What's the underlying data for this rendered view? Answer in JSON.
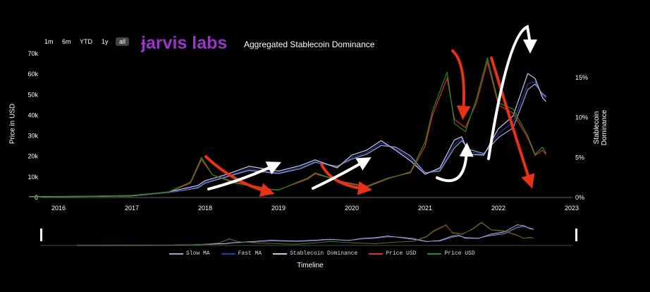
{
  "range_buttons": [
    "1m",
    "6m",
    "YTD",
    "1y",
    "all"
  ],
  "active_range": "all",
  "brand_name": "ɉarvis labs",
  "brand_color": "#9b35c9",
  "chart_title": "Aggregated Stablecoin Dominance",
  "chart_data": {
    "type": "line",
    "title": "Aggregated Stablecoin Dominance",
    "xlabel": "Timeline",
    "ylabel": "Price in USD",
    "y2label": "Stablecoin Dominance",
    "x_ticks": [
      "2016",
      "2017",
      "2018",
      "2019",
      "2020",
      "2021",
      "2022",
      "2023"
    ],
    "y_ticks": [
      "0",
      "10k",
      "20k",
      "30k",
      "40k",
      "50k",
      "60k",
      "70k"
    ],
    "y2_ticks": [
      "0%",
      "5%",
      "10%",
      "15%"
    ],
    "ylim": [
      0,
      70000
    ],
    "y2lim": [
      0,
      18
    ],
    "grid": false,
    "legend_position": "bottom",
    "series": [
      {
        "name": "Slow MA",
        "color": "#9aa9c8",
        "axis": "right",
        "x": [
          2015.6,
          2016.0,
          2016.5,
          2017.0,
          2017.5,
          2017.9,
          2018.0,
          2018.3,
          2018.6,
          2019.0,
          2019.3,
          2019.5,
          2019.8,
          2020.0,
          2020.2,
          2020.4,
          2020.6,
          2020.8,
          2021.0,
          2021.2,
          2021.4,
          2021.5,
          2021.6,
          2021.8,
          2022.0,
          2022.2,
          2022.4,
          2022.5,
          2022.6,
          2022.65
        ],
        "y": [
          0.1,
          0.12,
          0.15,
          0.2,
          0.6,
          1.2,
          1.8,
          2.6,
          3.4,
          3.0,
          3.6,
          4.4,
          3.9,
          4.8,
          5.4,
          6.5,
          6.3,
          5.2,
          3.1,
          3.3,
          6.2,
          7.1,
          6.0,
          5.5,
          7.5,
          8.7,
          13.5,
          14.2,
          13.0,
          12.6
        ]
      },
      {
        "name": "Fast MA",
        "color": "#1f3da8",
        "axis": "right",
        "x": [
          2015.6,
          2016.0,
          2016.5,
          2017.0,
          2017.5,
          2017.9,
          2018.0,
          2018.3,
          2018.6,
          2019.0,
          2019.3,
          2019.5,
          2019.8,
          2020.0,
          2020.2,
          2020.4,
          2020.6,
          2020.8,
          2021.0,
          2021.2,
          2021.4,
          2021.5,
          2021.6,
          2021.8,
          2022.0,
          2022.2,
          2022.4,
          2022.5,
          2022.6,
          2022.65
        ],
        "y": [
          0.1,
          0.12,
          0.15,
          0.2,
          0.6,
          1.3,
          1.9,
          2.7,
          3.6,
          3.1,
          3.8,
          4.5,
          3.8,
          5.0,
          5.6,
          6.8,
          6.1,
          4.9,
          3.0,
          3.5,
          6.6,
          7.4,
          5.7,
          5.4,
          8.0,
          9.4,
          14.2,
          14.5,
          12.8,
          12.4
        ]
      },
      {
        "name": "Stablecoin Dominance",
        "color": "#cfc6ee",
        "axis": "right",
        "x": [
          2015.6,
          2016.0,
          2016.5,
          2017.0,
          2017.5,
          2017.9,
          2018.0,
          2018.3,
          2018.6,
          2019.0,
          2019.3,
          2019.5,
          2019.8,
          2020.0,
          2020.2,
          2020.4,
          2020.6,
          2020.8,
          2021.0,
          2021.2,
          2021.4,
          2021.5,
          2021.6,
          2021.8,
          2022.0,
          2022.2,
          2022.4,
          2022.5,
          2022.6,
          2022.65
        ],
        "y": [
          0.1,
          0.12,
          0.15,
          0.2,
          0.7,
          1.5,
          2.1,
          2.9,
          3.9,
          3.3,
          4.0,
          4.7,
          3.7,
          5.3,
          5.9,
          7.1,
          5.9,
          4.6,
          2.9,
          3.7,
          7.2,
          7.6,
          5.4,
          5.3,
          8.6,
          10.2,
          15.5,
          14.9,
          12.5,
          12.0
        ]
      },
      {
        "name": "Price USD",
        "color": "#e0301e",
        "axis": "left",
        "x": [
          2015.6,
          2016.0,
          2016.5,
          2017.0,
          2017.5,
          2017.8,
          2017.95,
          2018.1,
          2018.4,
          2018.9,
          2019.0,
          2019.4,
          2019.5,
          2019.9,
          2020.2,
          2020.5,
          2020.8,
          2021.0,
          2021.1,
          2021.3,
          2021.4,
          2021.55,
          2021.7,
          2021.85,
          2022.0,
          2022.2,
          2022.4,
          2022.5,
          2022.6,
          2022.65
        ],
        "y": [
          300,
          400,
          650,
          1000,
          2600,
          7000,
          18500,
          11000,
          7500,
          4000,
          3700,
          9000,
          11500,
          7500,
          5500,
          9500,
          12000,
          25000,
          40000,
          58000,
          38000,
          34000,
          46000,
          66000,
          45000,
          41000,
          29000,
          20500,
          23000,
          21000
        ]
      },
      {
        "name": "Price USD",
        "color": "#1f8b24",
        "axis": "left",
        "x": [
          2015.6,
          2016.0,
          2016.5,
          2017.0,
          2017.5,
          2017.8,
          2017.95,
          2018.1,
          2018.4,
          2018.9,
          2019.0,
          2019.4,
          2019.5,
          2019.9,
          2020.2,
          2020.5,
          2020.8,
          2021.0,
          2021.1,
          2021.3,
          2021.4,
          2021.55,
          2021.7,
          2021.85,
          2022.0,
          2022.2,
          2022.4,
          2022.5,
          2022.6,
          2022.65
        ],
        "y": [
          300,
          420,
          670,
          1000,
          2700,
          7500,
          19500,
          11000,
          7000,
          3800,
          3600,
          9500,
          12000,
          7200,
          5000,
          9200,
          12500,
          27000,
          42000,
          61000,
          36000,
          32000,
          48000,
          68000,
          46000,
          43000,
          30000,
          21000,
          24500,
          21500
        ]
      }
    ]
  },
  "legend_items": [
    {
      "label": "Slow MA",
      "color": "#9aa9c8"
    },
    {
      "label": "Fast MA",
      "color": "#1f3da8"
    },
    {
      "label": "Stablecoin Dominance",
      "color": "#cfc6ee"
    },
    {
      "label": "Price USD",
      "color": "#e0301e"
    },
    {
      "label": "Price USD",
      "color": "#1f8b24"
    }
  ]
}
